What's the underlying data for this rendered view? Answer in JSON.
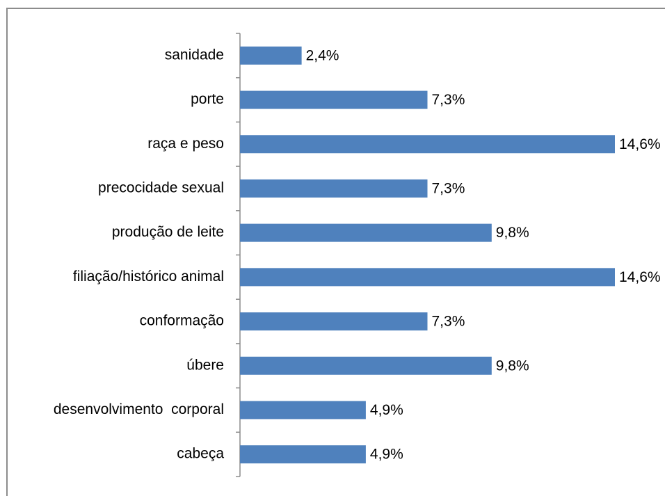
{
  "chart_data": {
    "type": "bar",
    "orientation": "horizontal",
    "categories": [
      "sanidade",
      "porte",
      "raça e peso",
      "precocidade sexual",
      "produção de leite",
      "filiação/histórico animal",
      "conformação",
      "úbere",
      "desenvolvimento  corporal",
      "cabeça"
    ],
    "values": [
      2.4,
      7.3,
      14.6,
      7.3,
      9.8,
      14.6,
      7.3,
      9.8,
      4.9,
      4.9
    ],
    "value_labels": [
      "2,4%",
      "7,3%",
      "14,6%",
      "7,3%",
      "9,8%",
      "14,6%",
      "7,3%",
      "9,8%",
      "4,9%",
      "4,9%"
    ],
    "color": "#4f81bd"
  }
}
